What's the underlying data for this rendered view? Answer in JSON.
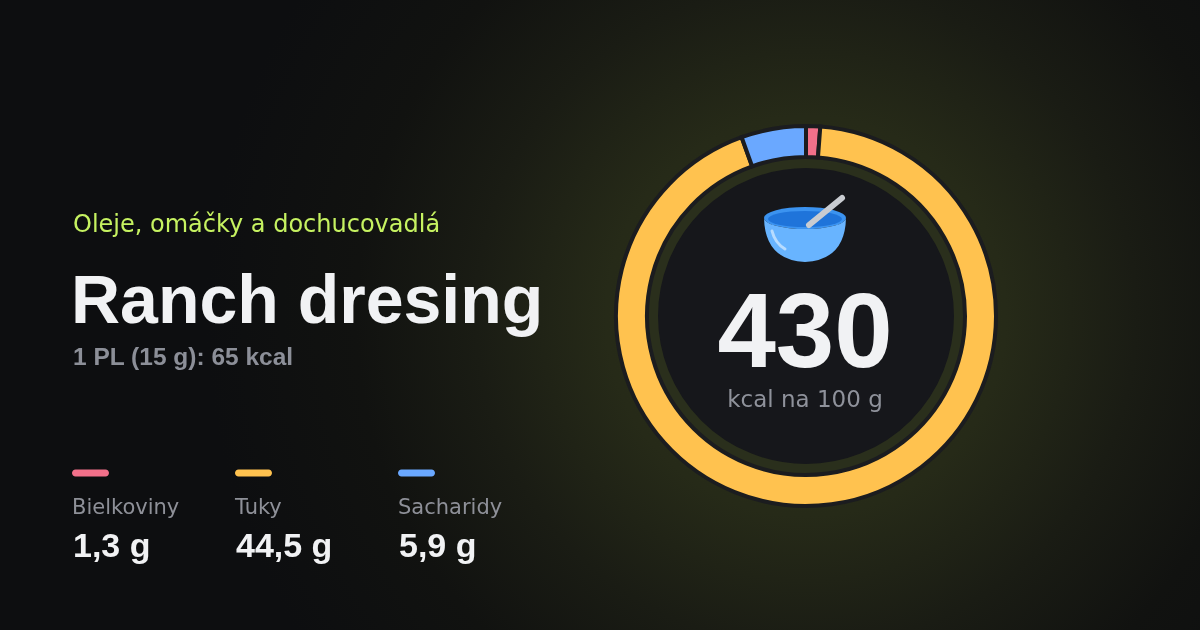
{
  "chart_data": {
    "type": "donut",
    "title": "Ranch dresing",
    "subtitle": "Oleje, omáčky a dochucovadlá",
    "annotations": [
      "1 PL (15 g): 65 kcal",
      "430",
      "kcal na 100 g",
      "1,3 g",
      "44,5 g",
      "5,9 g"
    ],
    "categories": [
      "Bielkoviny",
      "Tuky",
      "Sacharidy"
    ],
    "values": [
      1.2,
      93.3,
      5.5
    ],
    "colors": [
      "#f2708a",
      "#ffc24f",
      "#6aa8ff"
    ],
    "legend": "left"
  }
}
